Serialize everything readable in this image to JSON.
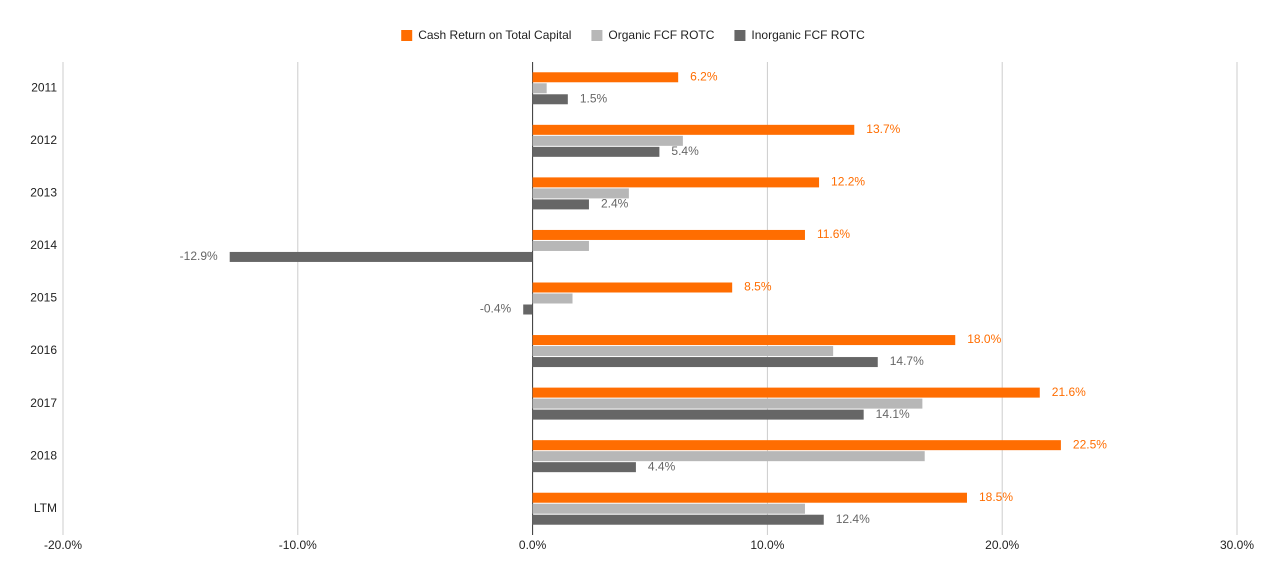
{
  "chart_data": {
    "type": "hbar",
    "categories": [
      "2011",
      "2012",
      "2013",
      "2014",
      "2015",
      "2016",
      "2017",
      "2018",
      "LTM"
    ],
    "series": [
      {
        "name": "Cash Return on Total Capital",
        "color": "#ff6d01",
        "values": [
          6.2,
          13.7,
          12.2,
          11.6,
          8.5,
          18.0,
          21.6,
          22.5,
          18.5
        ],
        "value_labels": [
          "6.2%",
          "13.7%",
          "12.2%",
          "11.6%",
          "8.5%",
          "18.0%",
          "21.6%",
          "22.5%",
          "18.5%"
        ]
      },
      {
        "name": "Organic FCF ROTC",
        "color": "#b7b7b7",
        "values": [
          0.6,
          6.4,
          4.1,
          2.4,
          1.7,
          12.8,
          16.6,
          16.7,
          11.6
        ]
      },
      {
        "name": "Inorganic FCF ROTC",
        "color": "#666666",
        "values": [
          1.5,
          5.4,
          2.4,
          -12.9,
          -0.4,
          14.7,
          14.1,
          4.4,
          12.4
        ],
        "value_labels": [
          "1.5%",
          "5.4%",
          "2.4%",
          "-12.9%",
          "-0.4%",
          "14.7%",
          "14.1%",
          "4.4%",
          "12.4%"
        ]
      }
    ],
    "xlim": [
      -20,
      30
    ],
    "xticks": [
      {
        "value": -20,
        "label": "-20.0%"
      },
      {
        "value": -10,
        "label": "-10.0%"
      },
      {
        "value": 0,
        "label": "0.0%"
      },
      {
        "value": 10,
        "label": "10.0%"
      },
      {
        "value": 20,
        "label": "20.0%"
      },
      {
        "value": 30,
        "label": "30.0%"
      }
    ],
    "grid": true,
    "legend": "top"
  }
}
